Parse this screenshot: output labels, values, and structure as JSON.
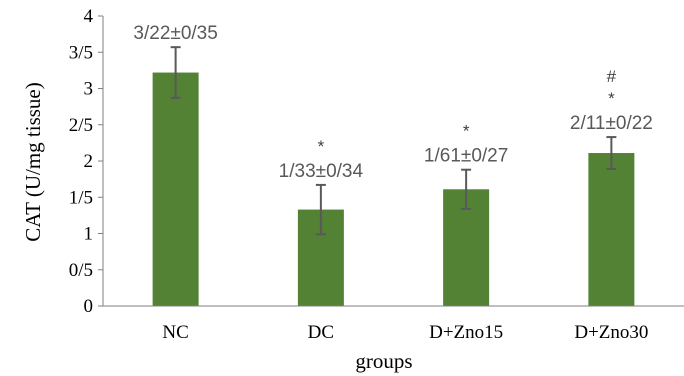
{
  "chart_data": {
    "type": "bar",
    "ylabel": "CAT (U/mg tissue)",
    "xlabel": "groups",
    "ylim": [
      0,
      4
    ],
    "yticks": [
      {
        "value": 0,
        "label": "0"
      },
      {
        "value": 0.5,
        "label": "0/5"
      },
      {
        "value": 1,
        "label": "1"
      },
      {
        "value": 1.5,
        "label": "1/5"
      },
      {
        "value": 2,
        "label": "2"
      },
      {
        "value": 2.5,
        "label": "2/5"
      },
      {
        "value": 3,
        "label": "3"
      },
      {
        "value": 3.5,
        "label": "3/5"
      },
      {
        "value": 4,
        "label": "4"
      }
    ],
    "categories": [
      "NC",
      "DC",
      "D+Zno15",
      "D+Zno30"
    ],
    "values": [
      3.22,
      1.33,
      1.61,
      2.11
    ],
    "errors": [
      0.35,
      0.34,
      0.27,
      0.22
    ],
    "data_labels": [
      "3/22±0/35",
      "1/33±0/34",
      "1/61±0/27",
      "2/11±0/22"
    ],
    "significance_marks": [
      [],
      [
        "*"
      ],
      [
        "*"
      ],
      [
        "*",
        "#"
      ]
    ],
    "bar_color": "#548235",
    "error_color": "#595959",
    "grid": false,
    "legend": "none"
  }
}
